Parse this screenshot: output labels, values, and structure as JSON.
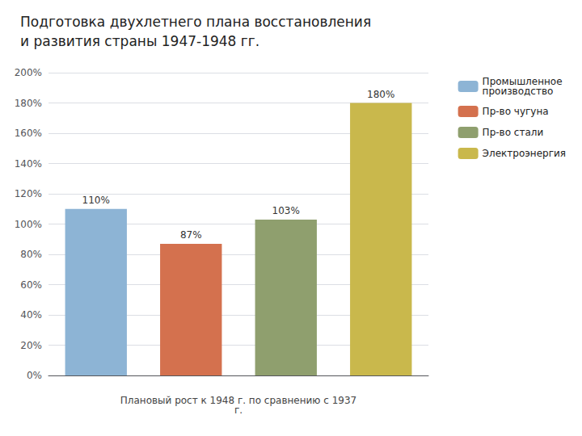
{
  "chart_data": {
    "type": "bar",
    "title": "Подготовка двухлетнего плана восстановления\nи развития страны 1947-1948 гг.",
    "categories": [
      "Промышленное\nпроизводство",
      "Пр-во чугуна",
      "Пр-во стали",
      "Электроэнергия"
    ],
    "values": [
      110,
      87,
      103,
      180
    ],
    "value_labels": [
      "110%",
      "87%",
      "103%",
      "180%"
    ],
    "data_labels": true,
    "colors": [
      "#8db4d5",
      "#d4714e",
      "#8f9f6e",
      "#c9b84c"
    ],
    "xlabel": "Плановый рост к 1948 г. по сравнению с 1937\nг.",
    "ylim": [
      0,
      200
    ],
    "yticks": [
      {
        "value": 0,
        "label": "0%"
      },
      {
        "value": 20,
        "label": "20%"
      },
      {
        "value": 40,
        "label": "40%"
      },
      {
        "value": 60,
        "label": "60%"
      },
      {
        "value": 80,
        "label": "80%"
      },
      {
        "value": 100,
        "label": "100%"
      },
      {
        "value": 120,
        "label": "120%"
      },
      {
        "value": 140,
        "label": "140%"
      },
      {
        "value": 160,
        "label": "160%"
      },
      {
        "value": 180,
        "label": "180%"
      },
      {
        "value": 200,
        "label": "200%"
      }
    ],
    "grid": true,
    "legend": "right",
    "tick_labels": "y"
  }
}
